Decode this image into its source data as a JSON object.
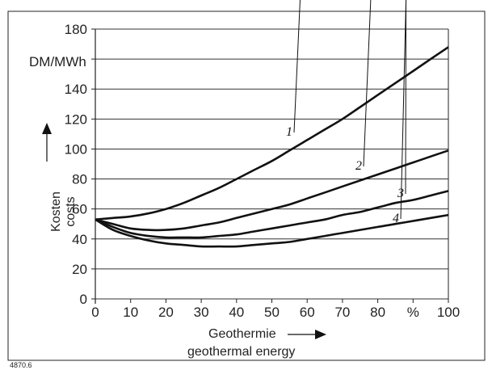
{
  "figure_ref": "4870.6",
  "chart_data": {
    "type": "line",
    "unit": "DM/MWh",
    "ylabel": "Kosten",
    "ylabel_en": "costs",
    "xlabel": "Geothermie",
    "xlabel_en": "geothermal energy",
    "x_unit": "%",
    "xlim": [
      0,
      100
    ],
    "ylim": [
      0,
      180
    ],
    "grid": "horizontal",
    "x_ticks": [
      "0",
      "10",
      "20",
      "30",
      "40",
      "50",
      "60",
      "70",
      "80",
      "%",
      "100"
    ],
    "y_ticks": [
      "0",
      "20",
      "40",
      "60",
      "80",
      "100",
      "120",
      "140",
      "160",
      "180"
    ],
    "x": [
      0,
      5,
      10,
      15,
      20,
      25,
      30,
      35,
      40,
      45,
      50,
      55,
      60,
      65,
      70,
      75,
      80,
      85,
      90,
      95,
      100
    ],
    "series": [
      {
        "name": "1",
        "values": [
          53,
          54,
          55,
          57,
          60,
          64,
          69,
          74,
          80,
          86,
          92,
          99,
          106,
          113,
          120,
          128,
          136,
          144,
          152,
          160,
          168
        ]
      },
      {
        "name": "2",
        "values": [
          53,
          50,
          47,
          46,
          46,
          47,
          49,
          51,
          54,
          57,
          60,
          63,
          67,
          71,
          75,
          79,
          83,
          87,
          91,
          95,
          99
        ]
      },
      {
        "name": "3",
        "values": [
          53,
          48,
          44,
          42,
          41,
          41,
          41,
          42,
          43,
          45,
          47,
          49,
          51,
          53,
          56,
          58,
          61,
          64,
          66,
          69,
          72
        ]
      },
      {
        "name": "4",
        "values": [
          53,
          46,
          42,
          39,
          37,
          36,
          35,
          35,
          35,
          36,
          37,
          38,
          40,
          42,
          44,
          46,
          48,
          50,
          52,
          54,
          56
        ]
      }
    ]
  }
}
